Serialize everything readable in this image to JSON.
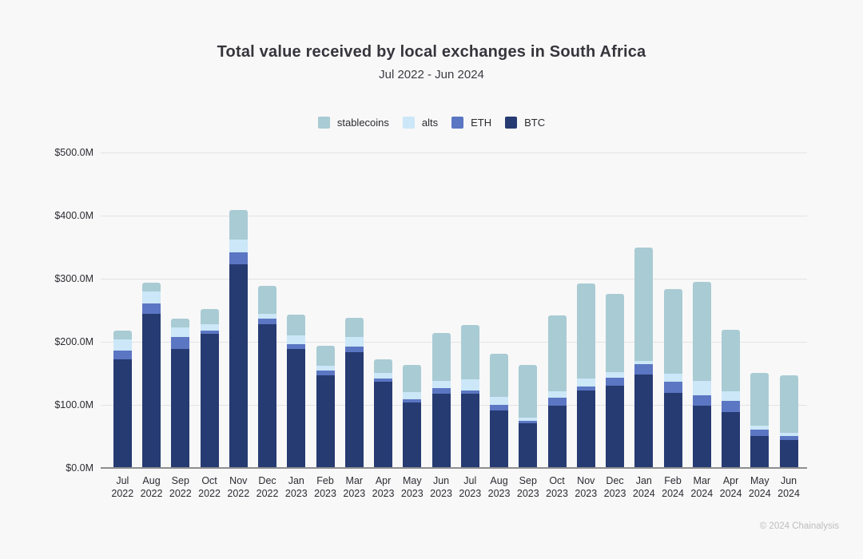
{
  "header": {
    "title": "Total value received by local exchanges in South Africa",
    "subtitle": "Jul 2022 - Jun 2024"
  },
  "footer": {
    "copyright": "© 2024 Chainalysis"
  },
  "colors": {
    "background": "#f8f8f8",
    "gridline": "#e3e3e3",
    "axis_baseline": "#8e8e90",
    "stablecoins": "#a9cbd4",
    "alts": "#cbe7f8",
    "ETH": "#5b76c2",
    "BTC": "#263b72"
  },
  "legend": {
    "position": "top",
    "items": [
      {
        "label": "stablecoins",
        "color": "#a9cbd4"
      },
      {
        "label": "alts",
        "color": "#cbe7f8"
      },
      {
        "label": "ETH",
        "color": "#5b76c2"
      },
      {
        "label": "BTC",
        "color": "#263b72"
      }
    ]
  },
  "chart_data": {
    "type": "bar",
    "stacked": true,
    "title": "Total value received by local exchanges in South Africa",
    "subtitle": "Jul 2022 - Jun 2024",
    "unit": "USD millions",
    "xlabel": "",
    "ylabel": "",
    "ylim": [
      0,
      500
    ],
    "yticks": [
      "$0.0M",
      "$100.0M",
      "$200.0M",
      "$300.0M",
      "$400.0M",
      "$500.0M"
    ],
    "grid": true,
    "legend_position": "top",
    "categories": [
      "Jul 2022",
      "Aug 2022",
      "Sep 2022",
      "Oct 2022",
      "Nov 2022",
      "Dec 2022",
      "Jan 2023",
      "Feb 2023",
      "Mar 2023",
      "Apr 2023",
      "May 2023",
      "Jun 2023",
      "Jul 2023",
      "Aug 2023",
      "Sep 2023",
      "Oct 2023",
      "Nov 2023",
      "Dec 2023",
      "Jan 2024",
      "Feb 2024",
      "Mar 2024",
      "Apr 2024",
      "May 2024",
      "Jun 2024"
    ],
    "series": [
      {
        "name": "BTC",
        "color": "#263b72",
        "values": [
          171,
          243,
          188,
          212,
          321,
          227,
          187,
          145,
          182,
          136,
          102,
          116,
          116,
          90,
          70,
          97,
          121,
          129,
          147,
          118,
          98,
          88,
          50,
          43
        ]
      },
      {
        "name": "ETH",
        "color": "#5b76c2",
        "values": [
          14,
          17,
          19,
          5,
          20,
          8,
          8,
          8,
          9,
          4,
          6,
          10,
          6,
          9,
          4,
          13,
          7,
          13,
          17,
          17,
          16,
          17,
          9,
          7
        ]
      },
      {
        "name": "alts",
        "color": "#cbe7f8",
        "values": [
          17,
          18,
          15,
          10,
          20,
          8,
          14,
          8,
          16,
          9,
          11,
          11,
          17,
          13,
          4,
          10,
          12,
          9,
          5,
          13,
          23,
          16,
          7,
          5
        ]
      },
      {
        "name": "stablecoins",
        "color": "#a9cbd4",
        "values": [
          14,
          14,
          14,
          23,
          47,
          45,
          33,
          31,
          30,
          22,
          43,
          76,
          86,
          68,
          84,
          121,
          151,
          124,
          179,
          134,
          157,
          97,
          84,
          91
        ]
      }
    ],
    "totals": [
      216,
      292,
      236,
      250,
      408,
      288,
      242,
      192,
      237,
      171,
      162,
      213,
      225,
      180,
      162,
      241,
      291,
      275,
      348,
      282,
      294,
      218,
      150,
      146
    ]
  }
}
